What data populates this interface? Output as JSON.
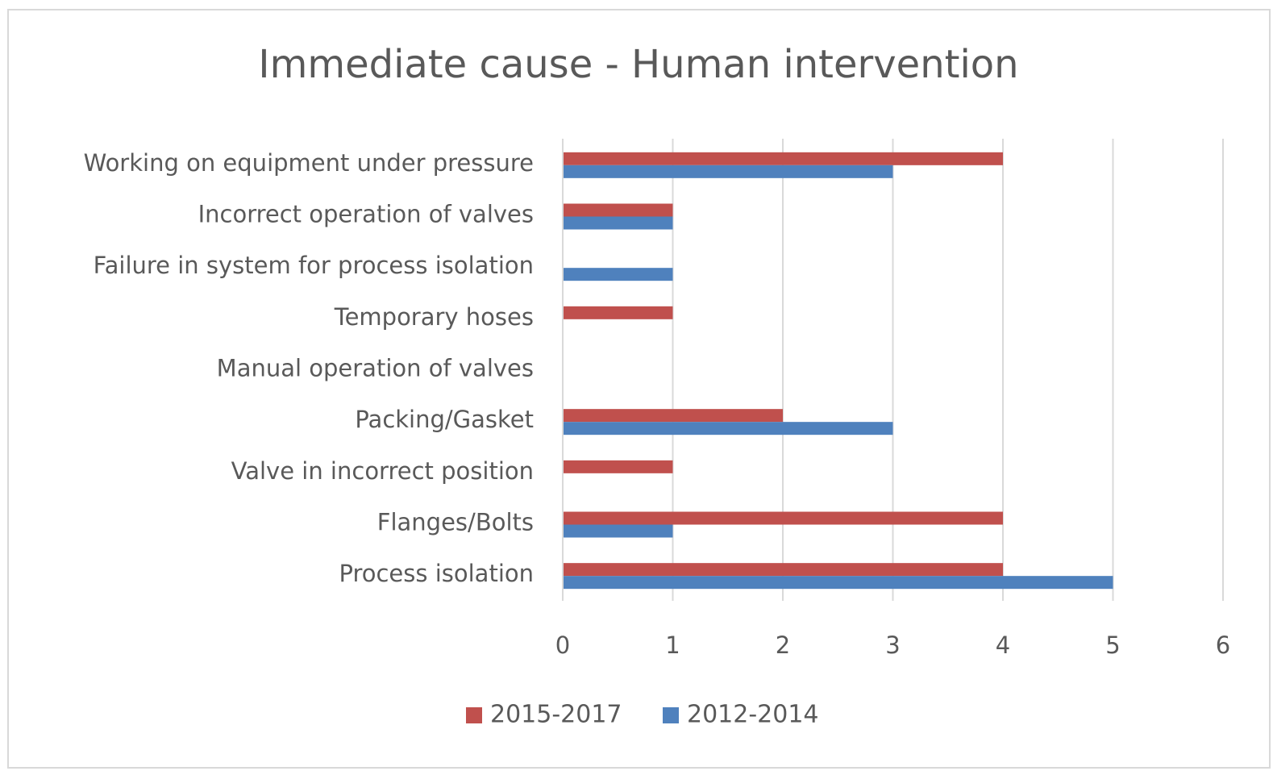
{
  "chart_data": {
    "type": "bar",
    "orientation": "horizontal",
    "title": "Immediate cause - Human intervention",
    "categories": [
      "Working on equipment under pressure",
      "Incorrect operation of valves",
      "Failure in system for process isolation",
      "Temporary hoses",
      "Manual operation of valves",
      "Packing/Gasket",
      "Valve in incorrect position",
      "Flanges/Bolts",
      "Process isolation"
    ],
    "series": [
      {
        "name": "2015-2017",
        "color": "#c0504d",
        "values": [
          4,
          1,
          0,
          1,
          0,
          2,
          1,
          4,
          4
        ]
      },
      {
        "name": "2012-2014",
        "color": "#4f81bd",
        "values": [
          3,
          1,
          1,
          0,
          0,
          3,
          0,
          1,
          5
        ]
      }
    ],
    "xlim": [
      0,
      6
    ],
    "xticks": [
      0,
      1,
      2,
      3,
      4,
      5,
      6
    ],
    "grid": true,
    "legend": "bottom"
  }
}
